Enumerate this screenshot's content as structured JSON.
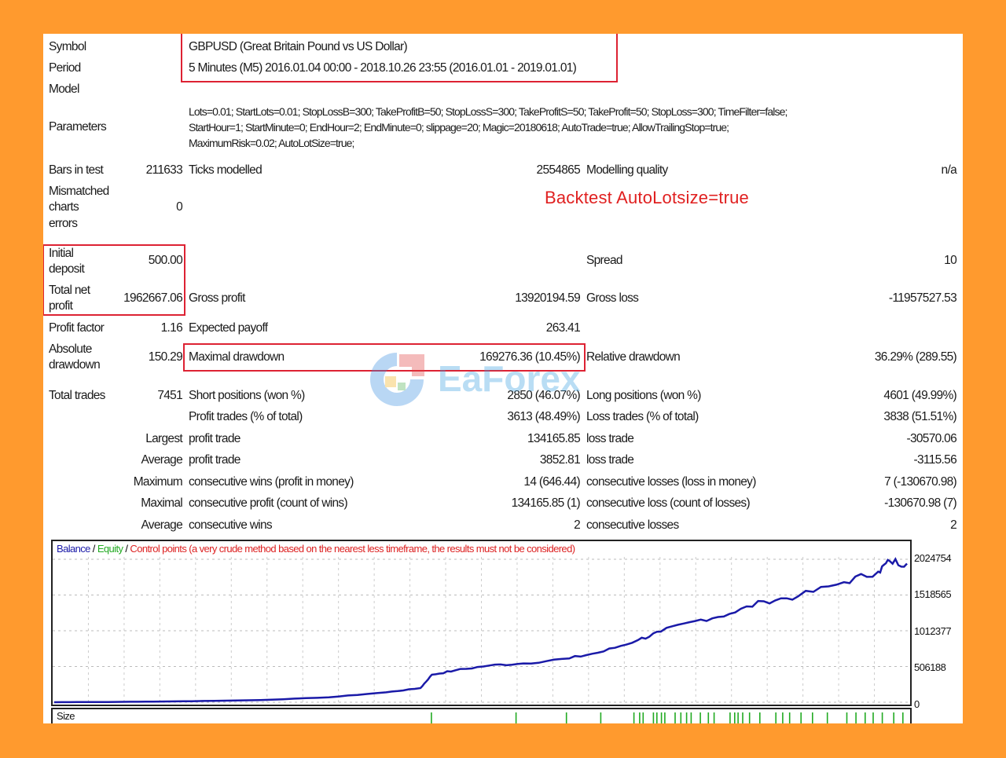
{
  "report": {
    "symbol_label": "Symbol",
    "symbol_value": "GBPUSD (Great Britain Pound vs US Dollar)",
    "period_label": "Period",
    "period_value": "5 Minutes (M5) 2016.01.04 00:00 - 2018.10.26 23:55 (2016.01.01 - 2019.01.01)",
    "model_label": "Model",
    "parameters_label": "Parameters",
    "parameters_lines": [
      "Lots=0.01; StartLots=0.01; StopLossB=300; TakeProfitB=50; StopLossS=300; TakeProfitS=50; TakeProfit=50; StopLoss=300; TimeFilter=false;",
      "StartHour=1; StartMinute=0; EndHour=2; EndMinute=0; slippage=20; Magic=20180618; AutoTrade=true; AllowTrailingStop=true;",
      "MaximumRisk=0.02; AutoLotSize=true;"
    ],
    "bars_label": "Bars in test",
    "bars_value": "211633",
    "ticks_label": "Ticks modelled",
    "ticks_value": "2554865",
    "quality_label": "Modelling quality",
    "quality_value": "n/a",
    "mismatch_label_1": "Mismatched",
    "mismatch_label_2": "charts",
    "mismatch_label_3": "errors",
    "mismatch_value": "0",
    "annotation": "Backtest AutoLotsize=true",
    "initial_label_1": "Initial",
    "initial_label_2": "deposit",
    "initial_value": "500.00",
    "spread_label": "Spread",
    "spread_value": "10",
    "net_label_1": "Total net",
    "net_label_2": "profit",
    "net_value": "1962667.06",
    "gross_profit_label": "Gross profit",
    "gross_profit_value": "13920194.59",
    "gross_loss_label": "Gross loss",
    "gross_loss_value": "-11957527.53",
    "pf_label": "Profit factor",
    "pf_value": "1.16",
    "payoff_label": "Expected payoff",
    "payoff_value": "263.41",
    "abs_dd_label_1": "Absolute",
    "abs_dd_label_2": "drawdown",
    "abs_dd_value": "150.29",
    "max_dd_label": "Maximal drawdown",
    "max_dd_value": "169276.36 (10.45%)",
    "rel_dd_label": "Relative drawdown",
    "rel_dd_value": "36.29% (289.55)",
    "trades_label": "Total trades",
    "trades_value": "7451",
    "short_label": "Short positions (won %)",
    "short_value": "2850 (46.07%)",
    "long_label": "Long positions (won %)",
    "long_value": "4601 (49.99%)",
    "profit_trades_label": "Profit trades (% of total)",
    "profit_trades_value": "3613 (48.49%)",
    "loss_trades_label": "Loss trades (% of total)",
    "loss_trades_value": "3838 (51.51%)",
    "largest_label": "Largest",
    "largest_profit_label": "profit trade",
    "largest_profit_value": "134165.85",
    "largest_loss_label": "loss trade",
    "largest_loss_value": "-30570.06",
    "average_label": "Average",
    "average_profit_label": "profit trade",
    "average_profit_value": "3852.81",
    "average_loss_label": "loss trade",
    "average_loss_value": "-3115.56",
    "maximum_label": "Maximum",
    "max_cons_wins_label": "consecutive wins (profit in money)",
    "max_cons_wins_value": "14 (646.44)",
    "max_cons_losses_label": "consecutive losses (loss in money)",
    "max_cons_losses_value": "7 (-130670.98)",
    "maximal_label": "Maximal",
    "maximal_profit_label": "consecutive profit (count of wins)",
    "maximal_profit_value": "134165.85 (1)",
    "maximal_loss_label": "consecutive loss (count of losses)",
    "maximal_loss_value": "-130670.98 (7)",
    "average2_label": "Average",
    "avg_cons_wins_label": "consecutive wins",
    "avg_cons_wins_value": "2",
    "avg_cons_losses_label": "consecutive losses",
    "avg_cons_losses_value": "2"
  },
  "watermark": {
    "text": "EaForex"
  },
  "chart": {
    "legend_balance": "Balance",
    "legend_sep1": " / ",
    "legend_equity": "Equity",
    "legend_sep2": " / ",
    "legend_control": "Control points (a very crude method based on the nearest less timeframe, the results must not be considered)",
    "size_label": "Size",
    "colors": {
      "balance": "#1a1aa8",
      "equity": "#22aa22",
      "control": "#dd2222",
      "size_bars": "#22aa22"
    }
  },
  "chart_data": {
    "type": "line",
    "title": "",
    "xlabel": "",
    "ylabel": "",
    "y_ticks": [
      "2024754",
      "1518565",
      "1012377",
      "506188",
      "0"
    ],
    "ylim": [
      0,
      2024754
    ],
    "grid": true,
    "series": [
      {
        "name": "Balance",
        "x": [
          0,
          400,
          800,
          1200,
          1800,
          2400,
          2900,
          3200,
          3300,
          3500,
          3800,
          4100,
          4500,
          4800,
          5100,
          5300,
          5600,
          5900,
          6200,
          6500,
          6900,
          7200,
          7300,
          7451
        ],
        "values": [
          500,
          3000,
          8000,
          15000,
          30000,
          70000,
          140000,
          200000,
          390000,
          450000,
          520000,
          550000,
          620000,
          720000,
          880000,
          1000000,
          1150000,
          1250000,
          1430000,
          1500000,
          1700000,
          1850000,
          2000000,
          1963167
        ]
      }
    ],
    "size_bars_x": [
      3290,
      4030,
      4470,
      4770,
      5060,
      5110,
      5140,
      5230,
      5260,
      5300,
      5330,
      5420,
      5470,
      5520,
      5560,
      5640,
      5710,
      5760,
      5900,
      5940,
      5970,
      6010,
      6070,
      6160,
      6300,
      6360,
      6420,
      6520,
      6620,
      6750,
      6920,
      7000,
      7080,
      7150,
      7230,
      7330,
      7410
    ]
  }
}
